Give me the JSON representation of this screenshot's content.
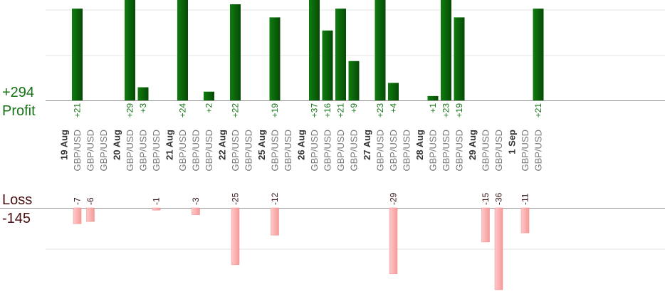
{
  "summary": {
    "profit_total": "+294",
    "profit_label": "Profit",
    "loss_label": "Loss",
    "loss_total": "-145"
  },
  "colors": {
    "profit_bar": "#0b6b0b",
    "profit_text": "#157315",
    "loss_bar": "#ffb3b3",
    "loss_text": "#331111",
    "date_text": "#333333",
    "pair_text": "#777777",
    "grid": "#e6e6e6",
    "baseline": "#999999"
  },
  "chart_data": {
    "type": "bar",
    "profit_ylim": [
      0,
      22
    ],
    "loss_ylim": [
      0,
      36
    ],
    "grid": true,
    "columns": [
      {
        "date": "19 Aug"
      },
      {
        "pair": "GBP/USD",
        "profit": 21,
        "profit_label": "+21",
        "loss": 7,
        "loss_label": "-7"
      },
      {
        "pair": "GBP/USD",
        "loss": 6,
        "loss_label": "-6"
      },
      {
        "pair": "GBP/USD"
      },
      {
        "date": "20 Aug"
      },
      {
        "pair": "GBP/USD",
        "profit": 29,
        "profit_label": "+29"
      },
      {
        "pair": "GBP/USD",
        "profit": 3,
        "profit_label": "+3"
      },
      {
        "pair": "GBP/USD",
        "loss": 1,
        "loss_label": "-1"
      },
      {
        "date": "21 Aug"
      },
      {
        "pair": "GBP/USD",
        "profit": 24,
        "profit_label": "+24"
      },
      {
        "pair": "GBP/USD",
        "loss": 3,
        "loss_label": "-3"
      },
      {
        "pair": "GBP/USD",
        "profit": 2,
        "profit_label": "+2"
      },
      {
        "date": "22 Aug"
      },
      {
        "pair": "GBP/USD",
        "profit": 22,
        "profit_label": "+22",
        "loss": 25,
        "loss_label": "-25"
      },
      {
        "pair": "GBP/USD"
      },
      {
        "date": "25 Aug"
      },
      {
        "pair": "GBP/USD",
        "profit": 19,
        "profit_label": "+19",
        "loss": 12,
        "loss_label": "-12"
      },
      {
        "pair": "GBP/USD"
      },
      {
        "date": "26 Aug"
      },
      {
        "pair": "GBP/USD",
        "profit": 37,
        "profit_label": "+37"
      },
      {
        "pair": "GBP/USD",
        "profit": 16,
        "profit_label": "+16"
      },
      {
        "pair": "GBP/USD",
        "profit": 21,
        "profit_label": "+21"
      },
      {
        "pair": "GBP/USD",
        "profit": 9,
        "profit_label": "+9"
      },
      {
        "date": "27 Aug"
      },
      {
        "pair": "GBP/USD",
        "profit": 23,
        "profit_label": "+23"
      },
      {
        "pair": "GBP/USD",
        "profit": 4,
        "profit_label": "+4",
        "loss": 29,
        "loss_label": "-29"
      },
      {
        "pair": "GBP/USD"
      },
      {
        "date": "28 Aug"
      },
      {
        "pair": "GBP/USD",
        "profit": 1,
        "profit_label": "+1"
      },
      {
        "pair": "GBP/USD",
        "profit": 23,
        "profit_label": "+23"
      },
      {
        "pair": "GBP/USD",
        "profit": 19,
        "profit_label": "+19"
      },
      {
        "date": "29 Aug"
      },
      {
        "pair": "GBP/USD",
        "loss": 15,
        "loss_label": "-15"
      },
      {
        "pair": "GBP/USD",
        "loss": 36,
        "loss_label": "-36"
      },
      {
        "date": "1 Sep"
      },
      {
        "pair": "GBP/USD",
        "loss": 11,
        "loss_label": "-11"
      },
      {
        "pair": "GBP/USD",
        "profit": 21,
        "profit_label": "+21"
      }
    ]
  }
}
